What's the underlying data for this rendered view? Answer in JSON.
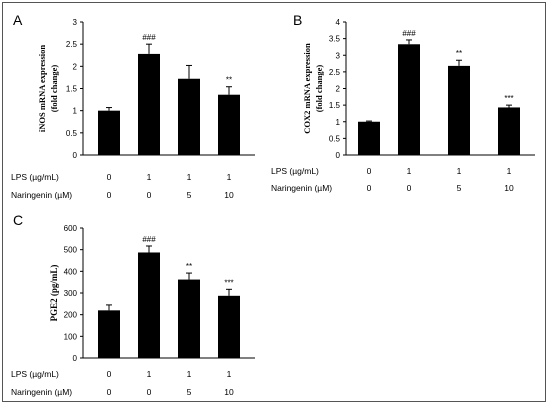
{
  "chart_data": [
    {
      "type": "bar",
      "panel_label": "A",
      "ylabel_lines": [
        "iNOS mRNA expression",
        "(fold change)"
      ],
      "ylim": [
        0,
        3
      ],
      "yticks": [
        "0",
        "0.5",
        "1",
        "1.5",
        "2",
        "2.5",
        "3"
      ],
      "values": [
        1.0,
        2.28,
        1.72,
        1.36
      ],
      "errors": [
        0.07,
        0.22,
        0.3,
        0.18
      ],
      "annotations": [
        "",
        "###",
        "",
        "**"
      ],
      "table_rows": [
        {
          "label": "LPS (µg/mL)",
          "values": [
            "0",
            "1",
            "1",
            "1"
          ]
        },
        {
          "label": "Naringenin (µM)",
          "values": [
            "0",
            "0",
            "5",
            "10"
          ]
        }
      ]
    },
    {
      "type": "bar",
      "panel_label": "B",
      "ylabel_lines": [
        "COX2 mRNA expression",
        "(fold change)"
      ],
      "ylim": [
        0,
        4
      ],
      "yticks": [
        "0",
        "0.5",
        "1",
        "1.5",
        "2",
        "2.5",
        "3",
        "3.5",
        "4"
      ],
      "values": [
        1.0,
        3.33,
        2.68,
        1.43
      ],
      "errors": [
        0.02,
        0.13,
        0.17,
        0.07
      ],
      "annotations": [
        "",
        "###",
        "**",
        "***"
      ],
      "table_rows": [
        {
          "label": "LPS (µg/mL)",
          "values": [
            "0",
            "1",
            "1",
            "1"
          ]
        },
        {
          "label": "Naringenin (µM)",
          "values": [
            "0",
            "0",
            "5",
            "10"
          ]
        }
      ]
    },
    {
      "type": "bar",
      "panel_label": "C",
      "ylabel_lines": [
        "PGE2 (pg/mL)"
      ],
      "ylim": [
        0,
        600
      ],
      "yticks": [
        "0",
        "100",
        "200",
        "300",
        "400",
        "500",
        "600"
      ],
      "values": [
        220,
        487,
        362,
        287
      ],
      "errors": [
        25,
        30,
        30,
        30
      ],
      "annotations": [
        "",
        "###",
        "**",
        "***"
      ],
      "table_rows": [
        {
          "label": "LPS (µg/mL)",
          "values": [
            "0",
            "1",
            "1",
            "1"
          ]
        },
        {
          "label": "Naringenin (µM)",
          "values": [
            "0",
            "0",
            "5",
            "10"
          ]
        }
      ]
    }
  ]
}
